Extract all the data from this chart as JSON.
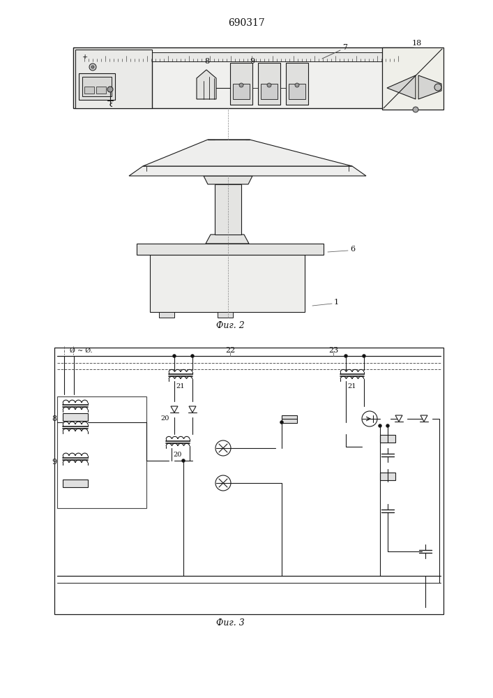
{
  "title": "690317",
  "fig2_caption": "Фиг. 2",
  "fig3_caption": "Фиг. 3",
  "bg": "white",
  "lc": "#1a1a1a"
}
